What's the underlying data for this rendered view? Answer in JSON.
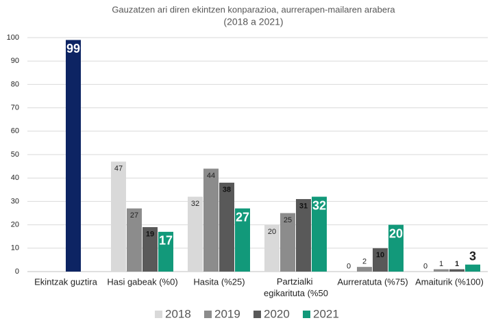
{
  "chart_data": {
    "type": "bar",
    "title": "Gauzatzen ari diren ekintzen konparazioa, aurrerapen-mailaren arabera",
    "subtitle": "(2018 a 2021)",
    "categories": [
      "Ekintzak guztira",
      "Hasi gabeak (%0)",
      "Hasita (%25)",
      "Partzialki egikarituta (%50",
      "Aurreratuta (%75)",
      "Amaiturik (%100)"
    ],
    "series": [
      {
        "name": "2018",
        "color": "#d9d9d9",
        "values": [
          null,
          47,
          32,
          20,
          0,
          0
        ],
        "label_color": "#222222",
        "label_size": 11,
        "label_bold": false
      },
      {
        "name": "2019",
        "color": "#8c8c8c",
        "values": [
          null,
          27,
          44,
          25,
          2,
          1
        ],
        "label_color": "#222222",
        "label_size": 11,
        "label_bold": false
      },
      {
        "name": "2020",
        "color": "#595959",
        "values": [
          99,
          19,
          38,
          31,
          10,
          1
        ],
        "label_color": "#111111",
        "label_size": 11,
        "label_bold": true,
        "highlight": {
          "index": 0,
          "color": "#0d2463",
          "label_color": "#ffffff",
          "label_size": 18
        }
      },
      {
        "name": "2021",
        "color": "#12997a",
        "values": [
          null,
          17,
          27,
          32,
          20,
          3
        ],
        "label_color": "#ffffff",
        "label_size": 18,
        "label_bold": true
      }
    ],
    "ylim": [
      0,
      100
    ],
    "yticks": [
      0,
      10,
      20,
      30,
      40,
      50,
      60,
      70,
      80,
      90,
      100
    ],
    "grid": true,
    "legend": "bottom"
  }
}
